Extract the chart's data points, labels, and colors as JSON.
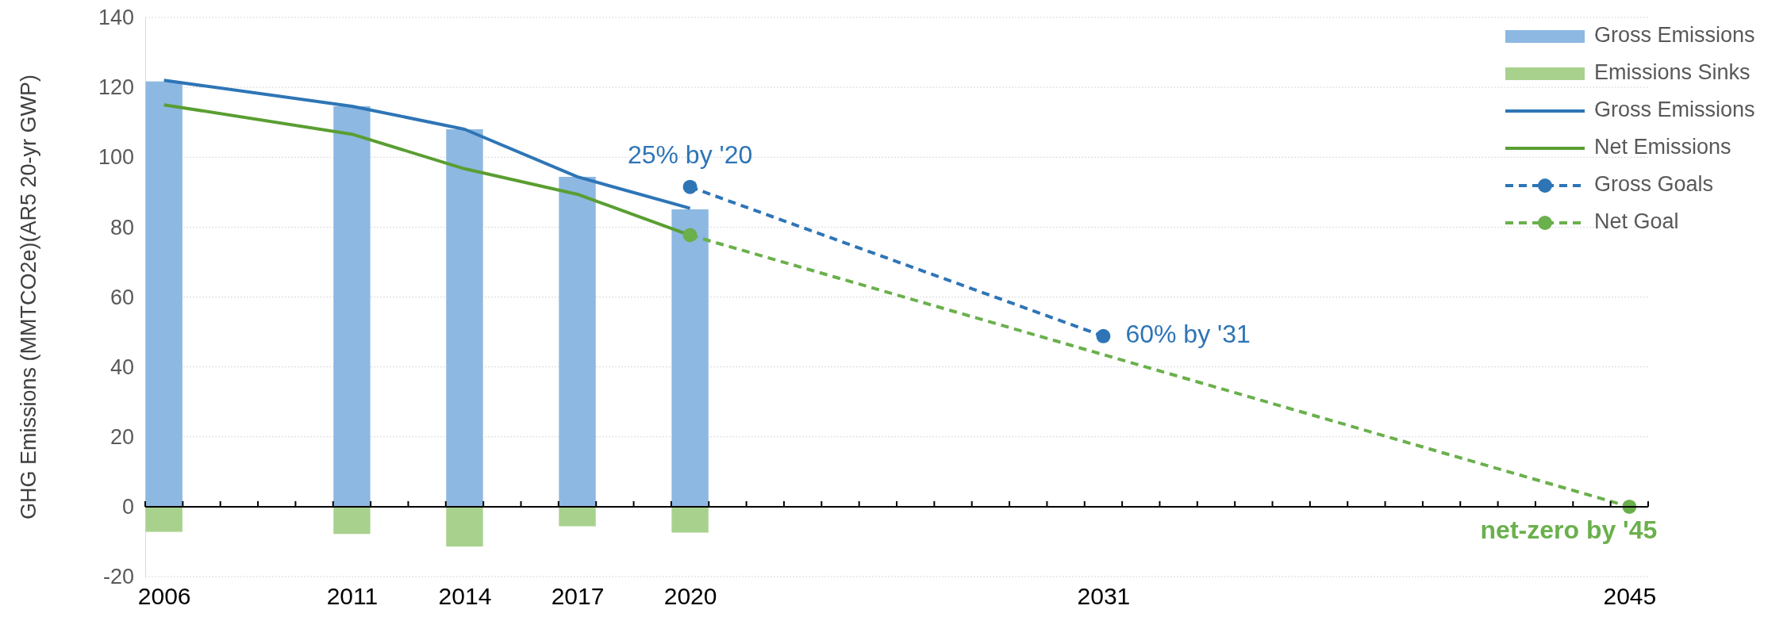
{
  "chart_data": {
    "type": "bar",
    "ylabel": "GHG Emissions (MMTCO2e)(AR5 20-yr GWP)",
    "x": [
      2006,
      2011,
      2014,
      2017,
      2020
    ],
    "series": [
      {
        "name": "Gross Emissions",
        "color": "#8db8e2",
        "values": [
          121.7,
          114.6,
          108,
          94.4,
          85.1
        ]
      },
      {
        "name": "Emissions Sinks",
        "color": "#a9d18e",
        "values": [
          -7.2,
          -7.8,
          -11.4,
          -5.6,
          -7.4
        ]
      },
      {
        "name": "Gross Emissions",
        "type": "line",
        "color": "#2e75b6",
        "x": [
          2006,
          2011,
          2014,
          2017,
          2020
        ],
        "values": [
          122,
          114.6,
          108,
          94.4,
          85.4
        ],
        "line_style": "solid",
        "marker": "none"
      },
      {
        "name": "Net Emissions",
        "type": "line",
        "color": "#5a9e32",
        "x": [
          2006,
          2011,
          2014,
          2017,
          2020
        ],
        "values": [
          115,
          106.6,
          96.7,
          89.4,
          77.7
        ],
        "line_style": "solid",
        "marker": "none"
      },
      {
        "name": "Gross Goals",
        "type": "line",
        "color": "#2e75b6",
        "x": [
          2020,
          2031
        ],
        "values": [
          91.5,
          48.8
        ],
        "line_style": "dashed",
        "marker": "circle"
      },
      {
        "name": "Net Goal",
        "type": "line",
        "color": "#6ab04c",
        "x": [
          2020,
          2045
        ],
        "values": [
          77.7,
          0
        ],
        "line_style": "dashed",
        "marker": "circle"
      }
    ],
    "annotations": [
      {
        "text": "25% by '20",
        "x": 2020,
        "y": 91.5
      },
      {
        "text": "60% by '31",
        "x": 2031,
        "y": 48.8
      },
      {
        "text": "net-zero by '45",
        "x": 2045,
        "y": 0
      }
    ],
    "xlim": [
      2005.5,
      2045.5
    ],
    "xticks": [
      2006,
      2011,
      2014,
      2017,
      2020,
      2031,
      2045
    ],
    "ylim": [
      -20,
      140
    ],
    "yticks": [
      -20,
      0,
      20,
      40,
      60,
      80,
      100,
      120,
      140
    ],
    "grid": "y",
    "legend": "top right",
    "stacked": true
  }
}
